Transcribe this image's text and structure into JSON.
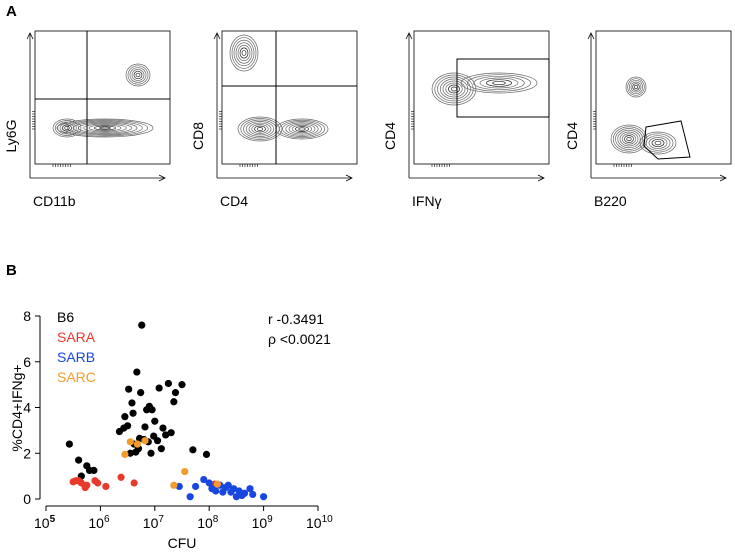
{
  "panels": {
    "a_label": "A",
    "b_label": "B"
  },
  "flow_plots": [
    {
      "y_label": "Ly6G",
      "x_label": "CD11b",
      "gate": "quadrant"
    },
    {
      "y_label": "CD8",
      "x_label": "CD4",
      "gate": "quadrant"
    },
    {
      "y_label": "CD4",
      "x_label": "IFNγ",
      "gate": "rectangle"
    },
    {
      "y_label": "CD4",
      "x_label": "B220",
      "gate": "polygon"
    }
  ],
  "chart_data": {
    "type": "scatter",
    "xlabel": "CFU",
    "ylabel": "%CD4+IFNg+",
    "x_scale": "log10",
    "xlim_exp": [
      5,
      10
    ],
    "x_tick_exponents": [
      "5",
      "6",
      "7",
      "8",
      "9",
      "10"
    ],
    "x_tick_base": "10",
    "ylim": [
      0,
      8
    ],
    "y_ticks": [
      "0",
      "2",
      "4",
      "6",
      "8"
    ],
    "stats": {
      "r": "r -0.3491",
      "p": "ρ <0.0021"
    },
    "series": [
      {
        "name": "B6",
        "color": "#000000",
        "points": [
          [
            5.43,
            2.4
          ],
          [
            5.6,
            1.7
          ],
          [
            5.65,
            1.0
          ],
          [
            5.75,
            1.45
          ],
          [
            5.8,
            1.25
          ],
          [
            5.88,
            1.25
          ],
          [
            6.35,
            2.95
          ],
          [
            6.43,
            3.1
          ],
          [
            6.45,
            3.6
          ],
          [
            6.5,
            3.2
          ],
          [
            6.52,
            4.8
          ],
          [
            6.55,
            2.0
          ],
          [
            6.58,
            4.2
          ],
          [
            6.6,
            3.75
          ],
          [
            6.62,
            2.4
          ],
          [
            6.65,
            2.05
          ],
          [
            6.67,
            5.55
          ],
          [
            6.7,
            2.2
          ],
          [
            6.72,
            2.65
          ],
          [
            6.74,
            4.65
          ],
          [
            6.76,
            7.6
          ],
          [
            6.8,
            2.6
          ],
          [
            6.82,
            3.15
          ],
          [
            6.85,
            3.9
          ],
          [
            6.88,
            2.5
          ],
          [
            6.9,
            4.05
          ],
          [
            6.93,
            2.0
          ],
          [
            6.95,
            3.9
          ],
          [
            6.98,
            2.75
          ],
          [
            7.0,
            3.4
          ],
          [
            7.05,
            2.55
          ],
          [
            7.08,
            4.85
          ],
          [
            7.12,
            2.2
          ],
          [
            7.15,
            3.1
          ],
          [
            7.2,
            2.8
          ],
          [
            7.25,
            5.05
          ],
          [
            7.3,
            2.9
          ],
          [
            7.35,
            4.25
          ],
          [
            7.38,
            4.65
          ],
          [
            7.5,
            5.0
          ],
          [
            7.7,
            2.15
          ],
          [
            7.95,
            1.95
          ]
        ]
      },
      {
        "name": "SARA",
        "color": "#e8392b",
        "points": [
          [
            5.5,
            0.75
          ],
          [
            5.55,
            0.8
          ],
          [
            5.6,
            0.8
          ],
          [
            5.65,
            0.7
          ],
          [
            5.72,
            0.5
          ],
          [
            5.75,
            0.6
          ],
          [
            5.9,
            0.8
          ],
          [
            5.95,
            0.7
          ],
          [
            6.1,
            0.55
          ],
          [
            6.38,
            0.95
          ],
          [
            6.62,
            0.7
          ],
          [
            8.1,
            0.65
          ]
        ]
      },
      {
        "name": "SARB",
        "color": "#1847e0",
        "points": [
          [
            7.45,
            0.55
          ],
          [
            7.65,
            0.1
          ],
          [
            7.75,
            0.55
          ],
          [
            7.9,
            0.85
          ],
          [
            8.0,
            0.7
          ],
          [
            8.05,
            0.45
          ],
          [
            8.12,
            0.35
          ],
          [
            8.2,
            0.6
          ],
          [
            8.25,
            0.3
          ],
          [
            8.3,
            0.5
          ],
          [
            8.35,
            0.6
          ],
          [
            8.4,
            0.3
          ],
          [
            8.45,
            0.45
          ],
          [
            8.5,
            0.1
          ],
          [
            8.55,
            0.35
          ],
          [
            8.6,
            0.15
          ],
          [
            8.65,
            0.25
          ],
          [
            8.75,
            0.45
          ],
          [
            8.8,
            0.2
          ],
          [
            9.0,
            0.1
          ]
        ]
      },
      {
        "name": "SARC",
        "color": "#f49b2a",
        "points": [
          [
            6.45,
            1.95
          ],
          [
            6.55,
            2.5
          ],
          [
            6.68,
            2.4
          ],
          [
            6.82,
            2.55
          ],
          [
            7.35,
            0.6
          ],
          [
            7.55,
            1.2
          ],
          [
            8.15,
            0.65
          ]
        ]
      }
    ]
  }
}
